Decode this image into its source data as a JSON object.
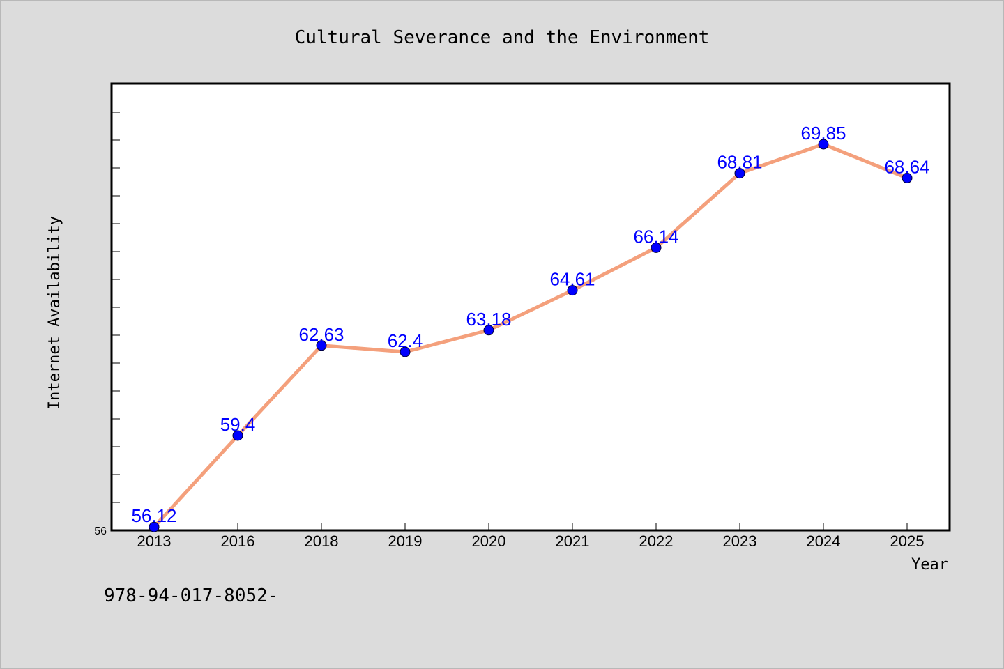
{
  "chart_data": {
    "type": "line",
    "title": "Cultural Severance and the Environment",
    "xlabel": "Year",
    "ylabel": "Internet Availability",
    "categories": [
      "2013",
      "2016",
      "2018",
      "2019",
      "2020",
      "2021",
      "2022",
      "2023",
      "2024",
      "2025"
    ],
    "series": [
      {
        "values": [
          56.12,
          59.4,
          62.63,
          62.4,
          63.18,
          64.61,
          66.14,
          68.81,
          69.85,
          68.64
        ],
        "labels": [
          "56.12",
          "59.4",
          "62.63",
          "62.4",
          "63.18",
          "64.61",
          "66.14",
          "68.81",
          "69.85",
          "68.64"
        ],
        "line_color": "#f4a07c",
        "marker_color": "#0000ff"
      }
    ],
    "ylim": [
      56,
      72
    ],
    "yticks_labeled": [
      "56"
    ],
    "grid": false,
    "legend": "none"
  },
  "footer": {
    "text": "978-94-017-8052-"
  },
  "colors": {
    "background": "#dcdcdc",
    "plot_background": "#ffffff"
  }
}
